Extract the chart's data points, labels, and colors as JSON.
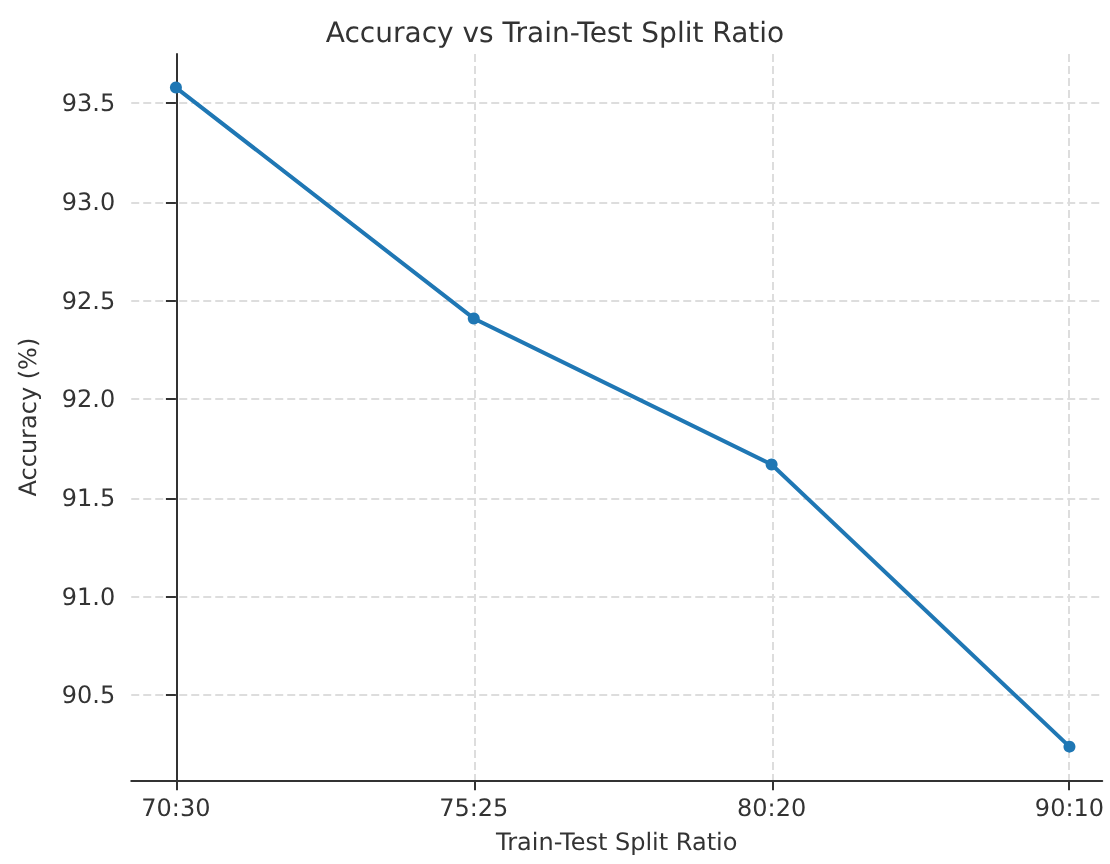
{
  "chart_data": {
    "type": "line",
    "title": "Accuracy vs Train-Test Split Ratio",
    "xlabel": "Train-Test Split Ratio",
    "ylabel": "Accuracy (%)",
    "categories": [
      "70:30",
      "75:25",
      "80:20",
      "90:10"
    ],
    "series": [
      {
        "color": "#1f77b4",
        "values": [
          93.58,
          92.41,
          91.67,
          90.24
        ]
      }
    ],
    "ylim": [
      90.07,
      93.75
    ],
    "yticks": [
      90.5,
      {
        "value": 91,
        "label": "91.0"
      },
      91.5,
      {
        "value": 92,
        "label": "92.0"
      },
      92.5,
      {
        "value": 93,
        "label": "93.0"
      },
      93.5
    ],
    "grid": true,
    "marker": "circle",
    "line_style": "solid"
  }
}
